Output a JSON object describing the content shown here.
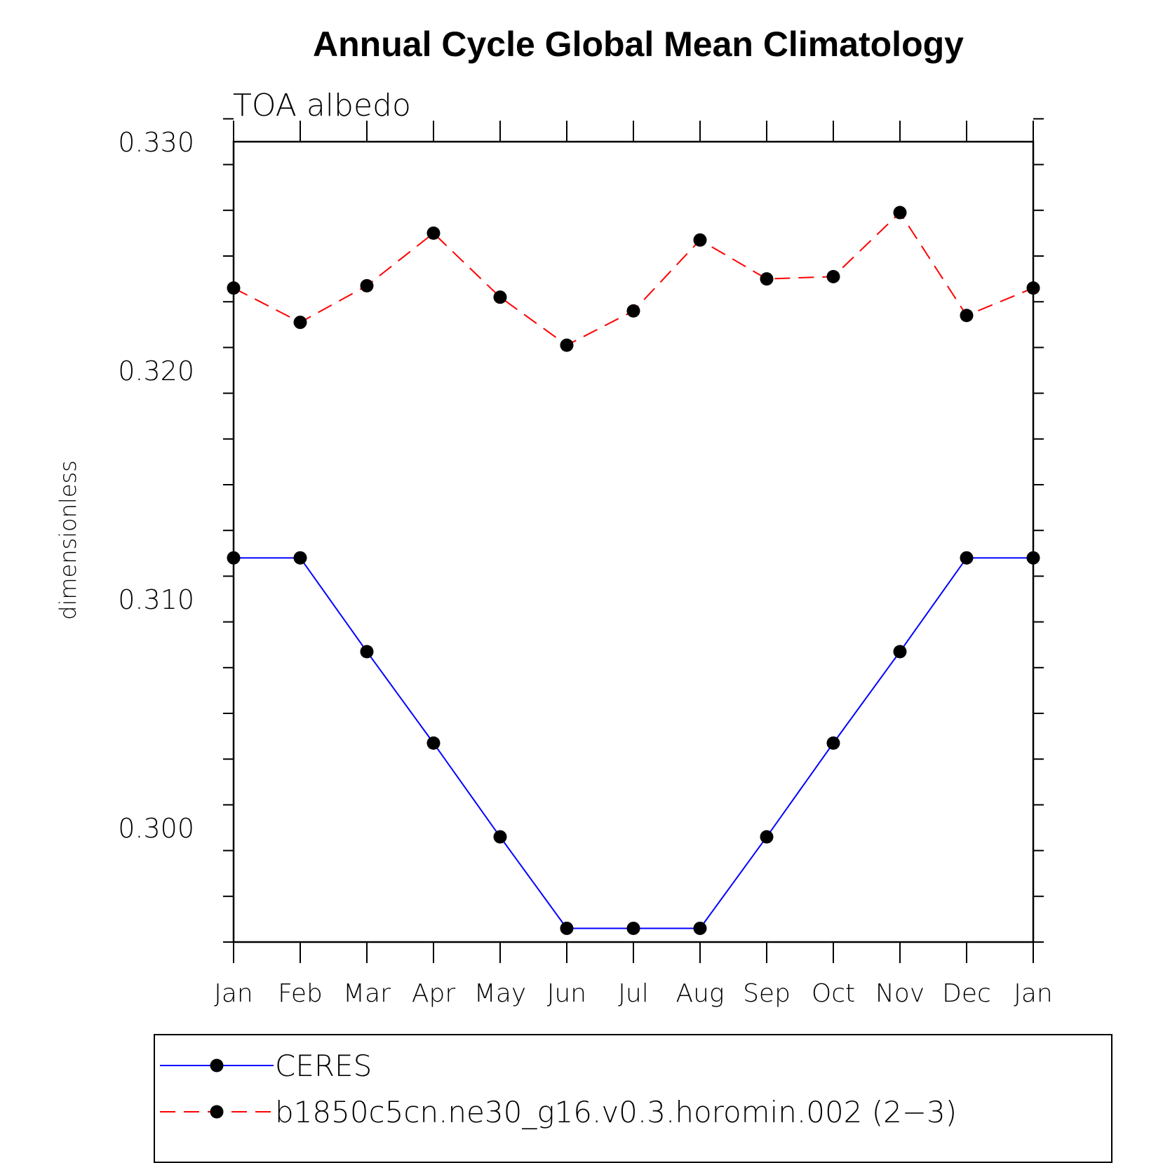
{
  "chart_data": {
    "type": "line",
    "title": "Annual Cycle Global Mean Climatology",
    "subtitle": "TOA albedo",
    "ylabel": "dimensionless",
    "xlabel": "",
    "categories": [
      "Jan",
      "Feb",
      "Mar",
      "Apr",
      "May",
      "Jun",
      "Jul",
      "Aug",
      "Sep",
      "Oct",
      "Nov",
      "Dec",
      "Jan"
    ],
    "ylim": [
      0.295,
      0.33
    ],
    "yticks": [
      0.3,
      0.31,
      0.32,
      0.33
    ],
    "ytick_labels": [
      "0.300",
      "0.310",
      "0.320",
      "0.330"
    ],
    "y_minor_step": 0.002,
    "grid": false,
    "legend_position": "bottom",
    "series": [
      {
        "name": "CERES",
        "color": "#0000ff",
        "line_style": "solid",
        "marker": "filled-circle",
        "values": [
          0.3118,
          0.3118,
          0.3077,
          0.3037,
          0.2996,
          0.2956,
          0.2956,
          0.2956,
          0.2996,
          0.3037,
          0.3077,
          0.3118,
          0.3118
        ]
      },
      {
        "name": "b1850c5cn.ne30_g16.v0.3.horomin.002 (2−3)",
        "color": "#ff0000",
        "line_style": "dashed",
        "marker": "filled-circle",
        "values": [
          0.3236,
          0.3221,
          0.3237,
          0.326,
          0.3232,
          0.3211,
          0.3226,
          0.3257,
          0.324,
          0.3241,
          0.3269,
          0.3224,
          0.3236
        ]
      }
    ]
  }
}
